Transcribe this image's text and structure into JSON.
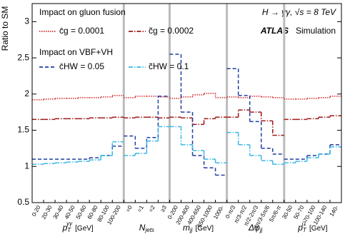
{
  "chart_data": {
    "type": "step",
    "ylabel": "Ratio to SM",
    "ylim": [
      0.5,
      3.25
    ],
    "yticks": [
      0.5,
      1,
      1.5,
      2,
      2.5,
      3
    ],
    "annotation": {
      "process": "H → γγ, √s = 8 TeV",
      "experiment": "ATLAS",
      "status": "Simulation"
    },
    "groups": [
      {
        "symbol": "p",
        "sub": "T",
        "sup": "γγ",
        "unit": "[GeV]",
        "categories": [
          "0-20",
          "20-30",
          "30-40",
          "40-50",
          "50-60",
          "60-80",
          "80-100",
          "100-200"
        ]
      },
      {
        "symbol": "N",
        "sub": "jets",
        "categories": [
          "=0",
          "=1",
          "=2",
          "≥3"
        ]
      },
      {
        "symbol": "m",
        "sub": "jj",
        "unit": "[GeV]",
        "categories": [
          "0-200",
          "200-400",
          "400-650",
          "650-1000",
          "1000-"
        ]
      },
      {
        "symbol": "Δφ",
        "sub": "jj",
        "categories": [
          "0-π/3",
          "π/3-π/2",
          "π/2-2π/3",
          "2π/3-5π/6",
          "5π/6-π"
        ]
      },
      {
        "symbol": "p",
        "sub": "T",
        "sup": "j1",
        "unit": "[GeV]",
        "categories": [
          "30-50",
          "50-70",
          "70-100",
          "100-140",
          "140-"
        ]
      }
    ],
    "series_groups": [
      {
        "title": "Impact on gluon fusion",
        "series": [
          {
            "name": "c̄g = 0.0001",
            "color": "#d42a2a",
            "linestyle": "dotted",
            "values": [
              1.92,
              1.93,
              1.94,
              1.94,
              1.95,
              1.95,
              1.96,
              1.98,
              1.95,
              1.97,
              1.97,
              1.96,
              1.94,
              1.96,
              1.99,
              2.01,
              1.95,
              1.96,
              1.95,
              1.97,
              1.96,
              1.95,
              1.93,
              1.93,
              1.94,
              1.95,
              1.97
            ]
          },
          {
            "name": "c̃g = 0.0002",
            "color": "#a01818",
            "linestyle": "dashdot",
            "values": [
              1.65,
              1.65,
              1.66,
              1.66,
              1.66,
              1.67,
              1.67,
              1.68,
              1.67,
              1.68,
              1.68,
              1.67,
              1.68,
              1.67,
              1.58,
              1.66,
              1.68,
              1.68,
              1.78,
              1.75,
              1.63,
              1.43,
              1.65,
              1.65,
              1.66,
              1.68,
              1.7
            ]
          }
        ]
      },
      {
        "title": "Impact on VBF+VH",
        "series": [
          {
            "name": "c̄HW = 0.05",
            "color": "#1f3fa0",
            "linestyle": "dashed",
            "values": [
              1.1,
              1.1,
              1.1,
              1.1,
              1.1,
              1.12,
              1.15,
              1.28,
              1.42,
              1.25,
              1.4,
              1.97,
              2.55,
              1.75,
              1.15,
              0.98,
              0.88,
              2.35,
              1.98,
              1.62,
              1.25,
              1.17,
              1.1,
              1.1,
              1.15,
              1.17,
              1.3
            ]
          },
          {
            "name": "c̃HW = 0.1",
            "color": "#3cb8e8",
            "linestyle": "dashdot",
            "values": [
              1.03,
              1.04,
              1.05,
              1.06,
              1.07,
              1.09,
              1.15,
              1.34,
              1.15,
              1.18,
              1.35,
              1.55,
              1.55,
              1.3,
              1.22,
              1.1,
              1.05,
              1.47,
              1.3,
              1.15,
              1.08,
              1.03,
              1.05,
              1.07,
              1.12,
              1.17,
              1.27
            ]
          }
        ]
      }
    ]
  }
}
